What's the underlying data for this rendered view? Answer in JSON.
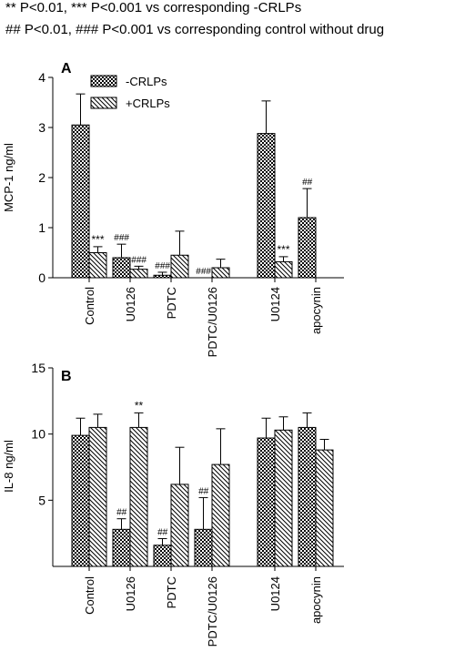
{
  "footnotes": [
    "** P<0.01, *** P<0.001 vs corresponding -CRLPs",
    "## P<0.01, ### P<0.001 vs corresponding control without drug"
  ],
  "chart_data": [
    {
      "type": "bar",
      "panel": "A",
      "ylabel": "MCP-1 ng/ml",
      "xlabel": "",
      "ylim": [
        0,
        4
      ],
      "yticks": [
        "0",
        "1",
        "2",
        "3",
        "4"
      ],
      "categories": [
        "Control",
        "U0126",
        "PDTC",
        "PDTC/U0126",
        "U0124",
        "apocynin"
      ],
      "legend_position": "top-left",
      "series": [
        {
          "name": "-CRLPs",
          "pattern": "checker",
          "values": [
            3.05,
            0.4,
            0.05,
            0,
            2.88,
            1.2
          ],
          "errors": [
            0.62,
            0.27,
            0.06,
            0,
            0.65,
            0.58
          ],
          "annotations": [
            "",
            "###",
            "###",
            "###",
            "",
            "##"
          ]
        },
        {
          "name": "+CRLPs",
          "pattern": "hatch",
          "values": [
            0.5,
            0.17,
            0.45,
            0.2,
            0.32,
            null
          ],
          "errors": [
            0.12,
            0.06,
            0.48,
            0.17,
            0.1,
            null
          ],
          "annotations": [
            "***",
            "###",
            "",
            "",
            "***",
            ""
          ]
        }
      ]
    },
    {
      "type": "bar",
      "panel": "B",
      "ylabel": "IL-8 ng/ml",
      "xlabel": "",
      "ylim": [
        0,
        15
      ],
      "yticks": [
        "5",
        "10",
        "15"
      ],
      "categories": [
        "Control",
        "U0126",
        "PDTC",
        "PDTC/U0126",
        "U0124",
        "apocynin"
      ],
      "series": [
        {
          "name": "-CRLPs",
          "pattern": "checker",
          "values": [
            9.9,
            2.8,
            1.6,
            2.8,
            9.7,
            10.5
          ],
          "errors": [
            1.3,
            0.8,
            0.5,
            2.4,
            1.5,
            1.1
          ],
          "annotations": [
            "",
            "##",
            "##",
            "##",
            "",
            ""
          ]
        },
        {
          "name": "+CRLPs",
          "pattern": "hatch",
          "values": [
            10.5,
            10.5,
            6.2,
            7.7,
            10.3,
            8.8
          ],
          "errors": [
            1.0,
            1.1,
            2.8,
            2.7,
            1.0,
            0.8
          ],
          "annotations": [
            "",
            "**",
            "",
            "",
            "",
            ""
          ]
        }
      ]
    }
  ]
}
